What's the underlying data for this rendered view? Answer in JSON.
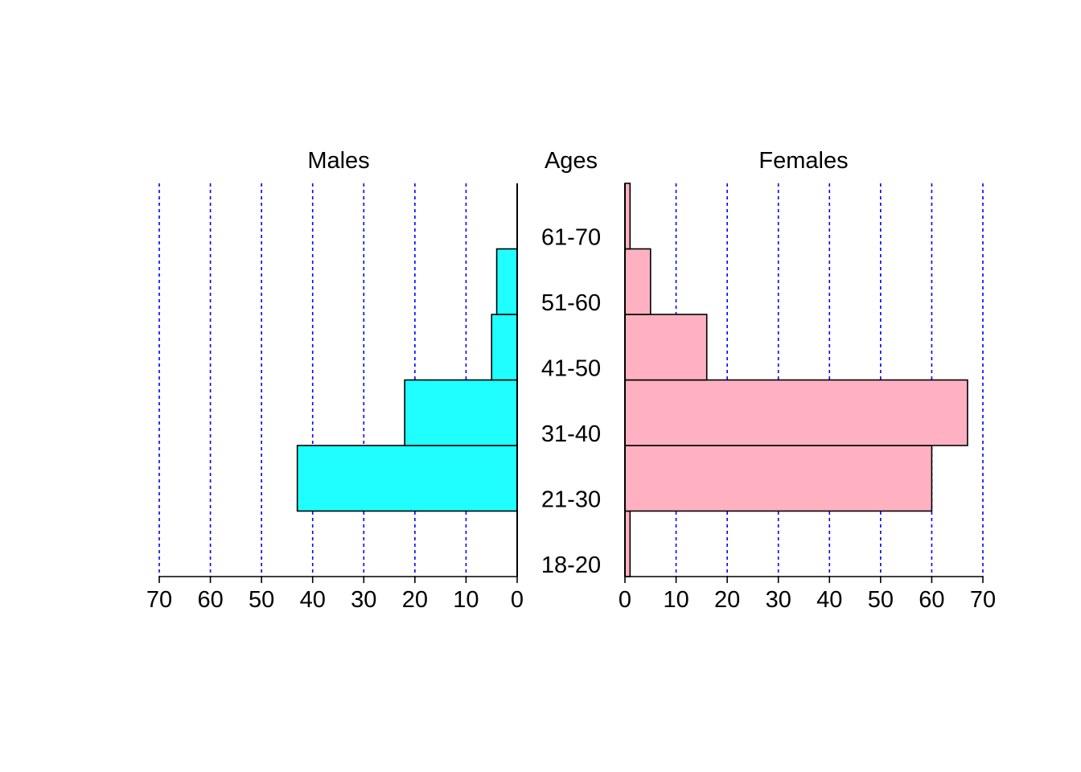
{
  "chart_data": {
    "type": "bar",
    "subtype": "population-pyramid",
    "titles": {
      "left": "Males",
      "center": "Ages",
      "right": "Females"
    },
    "categories": [
      "18-20",
      "21-30",
      "31-40",
      "41-50",
      "51-60",
      "61-70",
      ""
    ],
    "series": [
      {
        "name": "Males",
        "side": "left",
        "values": [
          0,
          43,
          22,
          5,
          4,
          0,
          0
        ],
        "color": "#1FFFFF"
      },
      {
        "name": "Females",
        "side": "right",
        "values": [
          1,
          60,
          67,
          16,
          5,
          1,
          0
        ],
        "color": "#FFB1C1"
      }
    ],
    "xlim": [
      0,
      70
    ],
    "x_ticks": [
      0,
      10,
      20,
      30,
      40,
      50,
      60,
      70
    ],
    "grid": {
      "on": true,
      "orientation": "vertical",
      "style": "dotted",
      "color": "#0000FF"
    }
  }
}
